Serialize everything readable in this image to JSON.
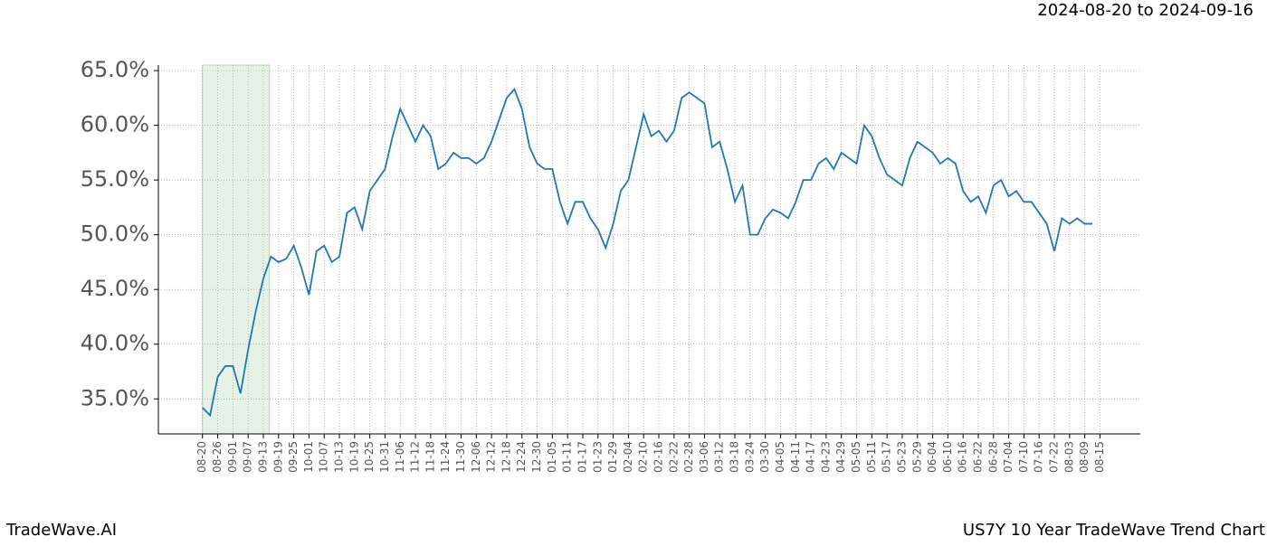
{
  "chart_data": {
    "type": "line",
    "title": "2024-08-20 to 2024-09-16",
    "footer_left": "TradeWave.AI",
    "footer_right": "US7Y 10 Year TradeWave Trend Chart",
    "series": [
      {
        "color": "#1f77b4",
        "values": [
          34.2,
          33.5,
          37,
          38,
          38,
          35.5,
          39.5,
          43,
          46,
          48,
          47.5,
          47.8,
          49,
          47,
          44.5,
          48.5,
          49,
          47.5,
          48,
          52,
          52.5,
          50.5,
          54,
          55,
          56,
          59,
          61.5,
          60,
          58.5,
          60,
          59,
          56,
          56.5,
          57.5,
          57,
          57,
          56.5,
          57,
          58.5,
          60.5,
          62.5,
          63.3,
          61.5,
          58,
          56.5,
          56,
          56,
          53,
          51,
          53,
          53,
          51.5,
          50.5,
          48.8,
          51,
          54,
          55,
          58,
          61,
          59,
          59.5,
          58.5,
          59.5,
          62.5,
          63,
          62.5,
          62,
          58,
          58.5,
          56,
          53,
          54.5,
          50,
          50,
          51.5,
          52.3,
          52,
          51.5,
          53,
          55,
          55,
          56.5,
          57,
          56,
          57.5,
          57,
          56.5,
          60,
          59,
          57,
          55.5,
          55,
          54.5,
          57,
          58.5,
          58,
          57.5,
          56.5,
          57,
          56.5,
          54,
          53,
          53.5,
          52,
          54.5,
          55,
          53.5,
          54,
          53,
          53,
          52,
          51,
          48.5,
          51.5,
          51,
          51.5,
          51,
          51
        ]
      }
    ],
    "highlight": [
      0,
      8.8
    ],
    "xlim": [
      -5.8,
      123.3
    ],
    "xticks": [
      {
        "value": 0,
        "label": "08-20"
      },
      {
        "value": 2,
        "label": "08-26"
      },
      {
        "value": 4,
        "label": "09-01"
      },
      {
        "value": 6,
        "label": "09-07"
      },
      {
        "value": 8,
        "label": "09-13"
      },
      {
        "value": 10,
        "label": "09-19"
      },
      {
        "value": 12,
        "label": "09-25"
      },
      {
        "value": 14,
        "label": "10-01"
      },
      {
        "value": 16,
        "label": "10-07"
      },
      {
        "value": 18,
        "label": "10-13"
      },
      {
        "value": 20,
        "label": "10-19"
      },
      {
        "value": 22,
        "label": "10-25"
      },
      {
        "value": 24,
        "label": "10-31"
      },
      {
        "value": 26,
        "label": "11-06"
      },
      {
        "value": 28,
        "label": "11-12"
      },
      {
        "value": 30,
        "label": "11-18"
      },
      {
        "value": 32,
        "label": "11-24"
      },
      {
        "value": 34,
        "label": "11-30"
      },
      {
        "value": 36,
        "label": "12-06"
      },
      {
        "value": 38,
        "label": "12-12"
      },
      {
        "value": 40,
        "label": "12-18"
      },
      {
        "value": 42,
        "label": "12-24"
      },
      {
        "value": 44,
        "label": "12-30"
      },
      {
        "value": 46,
        "label": "01-05"
      },
      {
        "value": 48,
        "label": "01-11"
      },
      {
        "value": 50,
        "label": "01-17"
      },
      {
        "value": 52,
        "label": "01-23"
      },
      {
        "value": 54,
        "label": "01-29"
      },
      {
        "value": 56,
        "label": "02-04"
      },
      {
        "value": 58,
        "label": "02-10"
      },
      {
        "value": 60,
        "label": "02-16"
      },
      {
        "value": 62,
        "label": "02-22"
      },
      {
        "value": 64,
        "label": "02-28"
      },
      {
        "value": 66,
        "label": "03-06"
      },
      {
        "value": 68,
        "label": "03-12"
      },
      {
        "value": 70,
        "label": "03-18"
      },
      {
        "value": 72,
        "label": "03-24"
      },
      {
        "value": 74,
        "label": "03-30"
      },
      {
        "value": 76,
        "label": "04-05"
      },
      {
        "value": 78,
        "label": "04-11"
      },
      {
        "value": 80,
        "label": "04-17"
      },
      {
        "value": 82,
        "label": "04-23"
      },
      {
        "value": 84,
        "label": "04-29"
      },
      {
        "value": 86,
        "label": "05-05"
      },
      {
        "value": 88,
        "label": "05-11"
      },
      {
        "value": 90,
        "label": "05-17"
      },
      {
        "value": 92,
        "label": "05-23"
      },
      {
        "value": 94,
        "label": "05-29"
      },
      {
        "value": 96,
        "label": "06-04"
      },
      {
        "value": 98,
        "label": "06-10"
      },
      {
        "value": 100,
        "label": "06-16"
      },
      {
        "value": 102,
        "label": "06-22"
      },
      {
        "value": 104,
        "label": "06-28"
      },
      {
        "value": 106,
        "label": "07-04"
      },
      {
        "value": 108,
        "label": "07-10"
      },
      {
        "value": 110,
        "label": "07-16"
      },
      {
        "value": 112,
        "label": "07-22"
      },
      {
        "value": 114,
        "label": "08-03"
      },
      {
        "value": 116,
        "label": "08-09"
      },
      {
        "value": 118,
        "label": "08-15"
      }
    ],
    "ylim": [
      31.8,
      65.5
    ],
    "yticks": [
      {
        "value": 35,
        "label": "35.0%"
      },
      {
        "value": 40,
        "label": "40.0%"
      },
      {
        "value": 45,
        "label": "45.0%"
      },
      {
        "value": 50,
        "label": "50.0%"
      },
      {
        "value": 55,
        "label": "55.0%"
      },
      {
        "value": 60,
        "label": "60.0%"
      },
      {
        "value": 65,
        "label": "65.0%"
      }
    ],
    "grid": true
  }
}
